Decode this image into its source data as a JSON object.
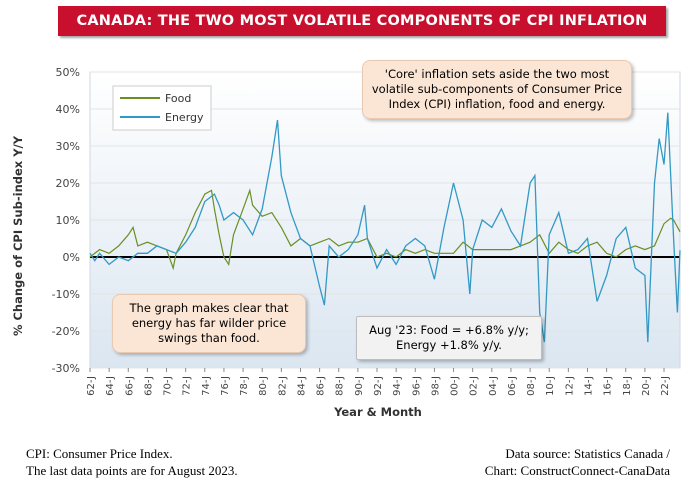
{
  "title": "CANADA: THE TWO MOST VOLATILE COMPONENTS OF CPI INFLATION",
  "notes": {
    "core": "'Core' inflation sets aside the two most volatile sub-components of Consumer Price Index (CPI) inflation, food and energy.",
    "graph": "The graph makes clear that energy has far wilder price swings than food.",
    "latest_line1": "Aug '23: Food = +6.8% y/y;",
    "latest_line2": "Energy +1.8% y/y."
  },
  "footer": {
    "left_line1": "CPI: Consumer Price Index.",
    "left_line2": "The last data points are for August 2023.",
    "right_line1": "Data source: Statistics Canada /",
    "right_line2": "Chart: ConstructConnect-CanaData"
  },
  "colors": {
    "food": "#6b8e23",
    "energy": "#3399c4",
    "title_bg": "#c8102e",
    "plot_bg_top": "#ffffff",
    "plot_bg_bottom": "#dfe9f3"
  },
  "chart_data": {
    "type": "line",
    "xlabel": "Year & Month",
    "ylabel": "% Change of CPI Sub-index Y/Y",
    "ylim": [
      -30,
      50
    ],
    "y_ticks": [
      "50%",
      "40%",
      "30%",
      "20%",
      "10%",
      "0%",
      "-10%",
      "-20%",
      "-30%"
    ],
    "x_tick_labels": [
      "62-J",
      "64-J",
      "66-J",
      "68-J",
      "70-J",
      "72-J",
      "74-J",
      "76-J",
      "78-J",
      "80-J",
      "82-J",
      "84-J",
      "86-J",
      "88-J",
      "90-J",
      "92-J",
      "94-J",
      "96-J",
      "98-J",
      "00-J",
      "02-J",
      "04-J",
      "06-J",
      "08-J",
      "10-J",
      "12-J",
      "14-J",
      "16-J",
      "18-J",
      "20-J",
      "22-J"
    ],
    "x_range": [
      1962.0,
      2023.67
    ],
    "grid": true,
    "legend": "top-left",
    "series": [
      {
        "name": "Food",
        "points": [
          [
            1962.0,
            0
          ],
          [
            1963.0,
            2
          ],
          [
            1964.0,
            1
          ],
          [
            1965.0,
            3
          ],
          [
            1966.0,
            6
          ],
          [
            1966.5,
            8
          ],
          [
            1967.0,
            3
          ],
          [
            1968.0,
            4
          ],
          [
            1969.0,
            3
          ],
          [
            1970.0,
            2
          ],
          [
            1970.7,
            -3
          ],
          [
            1971.0,
            1
          ],
          [
            1972.0,
            6
          ],
          [
            1973.0,
            12
          ],
          [
            1974.0,
            17
          ],
          [
            1974.7,
            18
          ],
          [
            1975.0,
            13
          ],
          [
            1975.5,
            6
          ],
          [
            1976.0,
            0
          ],
          [
            1976.5,
            -2
          ],
          [
            1977.0,
            6
          ],
          [
            1978.0,
            13
          ],
          [
            1978.7,
            18
          ],
          [
            1979.0,
            14
          ],
          [
            1980.0,
            11
          ],
          [
            1981.0,
            12
          ],
          [
            1982.0,
            8
          ],
          [
            1983.0,
            3
          ],
          [
            1984.0,
            5
          ],
          [
            1985.0,
            3
          ],
          [
            1986.0,
            4
          ],
          [
            1987.0,
            5
          ],
          [
            1988.0,
            3
          ],
          [
            1989.0,
            4
          ],
          [
            1990.0,
            4
          ],
          [
            1991.0,
            5
          ],
          [
            1992.0,
            0
          ],
          [
            1993.0,
            1
          ],
          [
            1994.0,
            0
          ],
          [
            1995.0,
            2
          ],
          [
            1996.0,
            1
          ],
          [
            1997.0,
            2
          ],
          [
            1998.0,
            1
          ],
          [
            1999.0,
            1
          ],
          [
            2000.0,
            1
          ],
          [
            2001.0,
            4
          ],
          [
            2002.0,
            2
          ],
          [
            2003.0,
            2
          ],
          [
            2004.0,
            2
          ],
          [
            2005.0,
            2
          ],
          [
            2006.0,
            2
          ],
          [
            2007.0,
            3
          ],
          [
            2008.0,
            4
          ],
          [
            2009.0,
            6
          ],
          [
            2010.0,
            1
          ],
          [
            2011.0,
            4
          ],
          [
            2012.0,
            2
          ],
          [
            2013.0,
            1
          ],
          [
            2014.0,
            3
          ],
          [
            2015.0,
            4
          ],
          [
            2016.0,
            1
          ],
          [
            2017.0,
            0
          ],
          [
            2018.0,
            2
          ],
          [
            2019.0,
            3
          ],
          [
            2020.0,
            2
          ],
          [
            2021.0,
            3
          ],
          [
            2022.0,
            9
          ],
          [
            2022.7,
            10.5
          ],
          [
            2023.0,
            10
          ],
          [
            2023.67,
            6.8
          ]
        ]
      },
      {
        "name": "Energy",
        "points": [
          [
            1962.0,
            1
          ],
          [
            1962.5,
            -1
          ],
          [
            1963.0,
            1
          ],
          [
            1964.0,
            -2
          ],
          [
            1965.0,
            0
          ],
          [
            1966.0,
            -1
          ],
          [
            1967.0,
            1
          ],
          [
            1968.0,
            1
          ],
          [
            1969.0,
            3
          ],
          [
            1970.0,
            2
          ],
          [
            1971.0,
            1
          ],
          [
            1972.0,
            4
          ],
          [
            1973.0,
            8
          ],
          [
            1974.0,
            15
          ],
          [
            1975.0,
            17
          ],
          [
            1975.5,
            14
          ],
          [
            1976.0,
            10
          ],
          [
            1977.0,
            12
          ],
          [
            1978.0,
            10
          ],
          [
            1979.0,
            6
          ],
          [
            1980.0,
            13
          ],
          [
            1981.0,
            27
          ],
          [
            1981.6,
            37
          ],
          [
            1982.0,
            22
          ],
          [
            1983.0,
            12
          ],
          [
            1984.0,
            5
          ],
          [
            1985.0,
            3
          ],
          [
            1986.0,
            -8
          ],
          [
            1986.5,
            -13
          ],
          [
            1987.0,
            3
          ],
          [
            1988.0,
            0
          ],
          [
            1989.0,
            2
          ],
          [
            1990.0,
            6
          ],
          [
            1990.7,
            14
          ],
          [
            1991.0,
            5
          ],
          [
            1992.0,
            -3
          ],
          [
            1993.0,
            2
          ],
          [
            1994.0,
            -2
          ],
          [
            1995.0,
            3
          ],
          [
            1996.0,
            5
          ],
          [
            1997.0,
            3
          ],
          [
            1998.0,
            -6
          ],
          [
            1999.0,
            8
          ],
          [
            2000.0,
            20
          ],
          [
            2001.0,
            10
          ],
          [
            2001.7,
            -10
          ],
          [
            2002.0,
            2
          ],
          [
            2003.0,
            10
          ],
          [
            2004.0,
            8
          ],
          [
            2005.0,
            13
          ],
          [
            2006.0,
            7
          ],
          [
            2007.0,
            3
          ],
          [
            2008.0,
            20
          ],
          [
            2008.5,
            22
          ],
          [
            2009.0,
            -15
          ],
          [
            2009.5,
            -23
          ],
          [
            2010.0,
            6
          ],
          [
            2011.0,
            12
          ],
          [
            2012.0,
            1
          ],
          [
            2013.0,
            2
          ],
          [
            2014.0,
            5
          ],
          [
            2015.0,
            -12
          ],
          [
            2016.0,
            -5
          ],
          [
            2017.0,
            5
          ],
          [
            2018.0,
            8
          ],
          [
            2019.0,
            -3
          ],
          [
            2020.0,
            -5
          ],
          [
            2020.3,
            -23
          ],
          [
            2021.0,
            20
          ],
          [
            2021.5,
            32
          ],
          [
            2022.0,
            25
          ],
          [
            2022.4,
            39
          ],
          [
            2023.0,
            5
          ],
          [
            2023.4,
            -15
          ],
          [
            2023.67,
            1.8
          ]
        ]
      }
    ]
  }
}
